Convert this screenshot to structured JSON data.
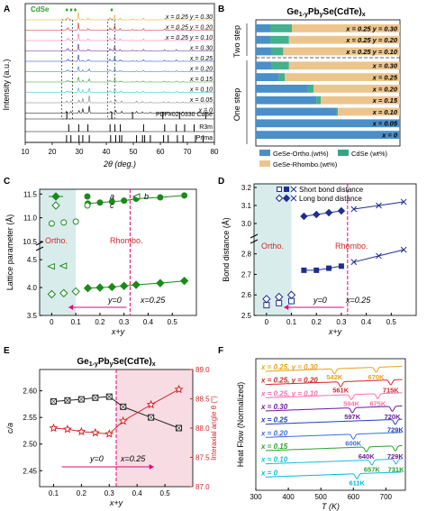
{
  "figure": {
    "panel_letters": [
      "A",
      "B",
      "C",
      "D",
      "E",
      "F"
    ],
    "formula": {
      "base": "Ge",
      "sub1": "1-y",
      "pb": "Pb",
      "sub2": "y",
      "mid": "Se(CdTe)",
      "sub3": "x"
    },
    "phase_labels": {
      "ortho": "Ortho.",
      "rhombo": "Rhombo."
    },
    "composition_labels": {
      "y0": "y=0",
      "x025": "x=0.25"
    }
  },
  "chart_data": [
    {
      "panel": "A",
      "type": "line",
      "xlabel": "2θ (deg.)",
      "ylabel": "Intensity (a.u.)",
      "xlim": [
        10,
        80
      ],
      "xticks": [
        10,
        20,
        30,
        40,
        50,
        60,
        70,
        80
      ],
      "cdse_marker_label": "CdSe",
      "series": [
        {
          "name": "x = 0.25 y = 0.30",
          "color": "#e8a317"
        },
        {
          "name": "x = 0.25 y = 0.20",
          "color": "#d62728"
        },
        {
          "name": "x = 0.25 y = 0.10",
          "color": "#ff6fb0"
        },
        {
          "name": "x = 0.30",
          "color": "#6a1b9a"
        },
        {
          "name": "x = 0.25",
          "color": "#1f3fbf"
        },
        {
          "name": "x = 0.20",
          "color": "#3b6fd8"
        },
        {
          "name": "x = 0.15",
          "color": "#2ca02c"
        },
        {
          "name": "x = 0.10",
          "color": "#17becf"
        },
        {
          "name": "x = 0.05",
          "color": "#7f7f7f"
        },
        {
          "name": "x = 0",
          "color": "#000000"
        }
      ],
      "reference_patterns": [
        {
          "name": "PDF#02-0330 CdSe",
          "peaks": [
            25.4,
            42.0,
            49.7,
            60.9,
            67.1,
            76.8
          ]
        },
        {
          "name": "R3m",
          "peaks": [
            26.1,
            29.8,
            33.2,
            41.4,
            43.2,
            45.2,
            53.8,
            61.6,
            65.9,
            69.0,
            72.5
          ]
        },
        {
          "name": "Pnma",
          "peaks": [
            25.3,
            26.9,
            29.9,
            31.3,
            33.7,
            41.6,
            43.5,
            44.9,
            45.7,
            51.2,
            53.4,
            54.2,
            56.3,
            61.2,
            62.9,
            66.3,
            68.4,
            73.0,
            75.8
          ]
        }
      ]
    },
    {
      "panel": "B",
      "type": "bar",
      "orientation": "horizontal",
      "stacked": true,
      "xlim": [
        0,
        100
      ],
      "group_labels": [
        "Two step",
        "One step"
      ],
      "categories": [
        "x = 0.25 y = 0.30",
        "x = 0.25 y = 0.20",
        "x = 0.25 y = 0.10",
        "x = 0.30",
        "x = 0.25",
        "x = 0.20",
        "x = 0.15",
        "x = 0.10",
        "x = 0.05",
        "x = 0"
      ],
      "series": [
        {
          "name": "GeSe-Ortho.(wt%)",
          "color": "#4a8fc8",
          "values": [
            10,
            10,
            11,
            11,
            16,
            36,
            42,
            56,
            100,
            100
          ]
        },
        {
          "name": "CdSe (wt%)",
          "color": "#2fa882",
          "values": [
            15,
            13,
            8,
            12,
            4,
            4,
            3,
            1,
            0,
            0
          ]
        },
        {
          "name": "GeSe-Rhombo.(wt%)",
          "color": "#ecc58c",
          "values": [
            75,
            77,
            81,
            77,
            80,
            60,
            55,
            43,
            0,
            0
          ]
        }
      ]
    },
    {
      "panel": "C",
      "type": "scatter",
      "xlabel": "x+y",
      "ylabel": "Lattice parameter (Å)",
      "xlim": [
        -0.05,
        0.6
      ],
      "xticks": [
        0,
        0.1,
        0.2,
        0.3,
        0.4,
        0.5
      ],
      "yticks": [
        3.5,
        4.0,
        4.5,
        10.5,
        11.0,
        11.5
      ],
      "broken_y": true,
      "series": [
        {
          "name": "a",
          "x": [
            0,
            0.05,
            0.1
          ],
          "y": [
            3.88,
            3.9,
            3.93
          ],
          "filled": false
        },
        {
          "name": "a",
          "x": [
            0.15,
            0.2,
            0.25,
            0.3,
            0.35,
            0.45,
            0.55
          ],
          "y": [
            3.99,
            4.0,
            4.01,
            4.03,
            4.05,
            4.08,
            4.12
          ],
          "filled": true
        },
        {
          "name": "b",
          "x": [
            0,
            0.05
          ],
          "y": [
            4.38,
            4.39
          ],
          "filled": false
        },
        {
          "name": "c",
          "x": [
            0,
            0.05,
            0.1
          ],
          "y": [
            10.88,
            10.9,
            10.92
          ],
          "filled": false
        },
        {
          "name": "c",
          "x": [
            0.15,
            0.2,
            0.25,
            0.3,
            0.35,
            0.45,
            0.55
          ],
          "y": [
            11.3,
            11.32,
            11.34,
            11.36,
            11.4,
            11.43,
            11.47
          ],
          "filled": true
        }
      ]
    },
    {
      "panel": "D",
      "type": "scatter",
      "xlabel": "x+y",
      "ylabel": "Bond distance (Å)",
      "xlim": [
        -0.05,
        0.6
      ],
      "xticks": [
        0,
        0.1,
        0.2,
        0.3,
        0.4,
        0.5
      ],
      "yticks": [
        2.5,
        2.6,
        2.7,
        2.8,
        3.0,
        3.1,
        3.2
      ],
      "broken_y": true,
      "legend": [
        "Short bond distance",
        "Long bond distance"
      ],
      "series": [
        {
          "name": "Short bond distance",
          "x": [
            0,
            0.05,
            0.1,
            0.15,
            0.2,
            0.25,
            0.3,
            0.35,
            0.45,
            0.55
          ],
          "y": [
            2.55,
            2.56,
            2.57,
            2.72,
            2.72,
            2.73,
            2.74,
            2.76,
            2.79,
            2.82
          ]
        },
        {
          "name": "Long bond distance",
          "x": [
            0,
            0.05,
            0.1,
            0.15,
            0.2,
            0.25,
            0.3,
            0.35,
            0.45,
            0.55
          ],
          "y": [
            2.58,
            2.59,
            2.6,
            3.04,
            3.05,
            3.06,
            3.07,
            3.08,
            3.1,
            3.12
          ]
        }
      ]
    },
    {
      "panel": "E",
      "type": "line",
      "xlabel": "x+y",
      "ylabel": "c/a",
      "ylabel_right": "Interaxial angle θ (°)",
      "xlim": [
        0.05,
        0.6
      ],
      "xticks": [
        0.1,
        0.2,
        0.3,
        0.4,
        0.5
      ],
      "ylim": [
        2.42,
        2.64
      ],
      "yticks": [
        2.45,
        2.5,
        2.55,
        2.6
      ],
      "ylim_right": [
        87.0,
        89.0
      ],
      "yticks_right": [
        87.0,
        87.5,
        88.0,
        88.5,
        89.0
      ],
      "series": [
        {
          "name": "c/a",
          "axis": "left",
          "x": [
            0.1,
            0.15,
            0.2,
            0.25,
            0.3,
            0.35,
            0.45,
            0.55
          ],
          "y": [
            2.58,
            2.582,
            2.584,
            2.587,
            2.589,
            2.57,
            2.55,
            2.53
          ]
        },
        {
          "name": "θ",
          "axis": "right",
          "x": [
            0.1,
            0.15,
            0.2,
            0.25,
            0.3,
            0.35,
            0.45,
            0.55
          ],
          "y": [
            88.0,
            87.98,
            87.94,
            87.92,
            87.9,
            88.12,
            88.4,
            88.66
          ]
        }
      ]
    },
    {
      "panel": "F",
      "type": "line",
      "xlabel": "T (K)",
      "ylabel": "Heat Flow (Normalized)",
      "xlim": [
        300,
        760
      ],
      "xticks": [
        300,
        400,
        500,
        600,
        700
      ],
      "series": [
        {
          "name": "x = 0.25, y = 0.30",
          "color": "#e8a317",
          "peaks_K": [
            542,
            670
          ]
        },
        {
          "name": "x = 0.25, y = 0.20",
          "color": "#d62728",
          "peaks_K": [
            561,
            715
          ]
        },
        {
          "name": "x = 0.25, y = 0.10",
          "color": "#ff6fb0",
          "peaks_K": [
            594,
            675
          ]
        },
        {
          "name": "x = 0.30",
          "color": "#6a1b9a",
          "peaks_K": [
            597,
            720
          ]
        },
        {
          "name": "x = 0.25",
          "color": "#1f3fbf",
          "peaks_K": [
            729
          ]
        },
        {
          "name": "x = 0.20",
          "color": "#3b6fd8",
          "peaks_K": [
            600
          ]
        },
        {
          "name": "x = 0.15",
          "color": "#2ca02c",
          "peaks_K": [
            640,
            729
          ]
        },
        {
          "name": "x = 0.10",
          "color": "#17becf",
          "peaks_K": [
            657,
            731
          ]
        },
        {
          "name": "x = 0",
          "color": "#00bcd4",
          "peaks_K": [
            611
          ]
        }
      ],
      "labels": [
        {
          "text": "542K",
          "color": "#e8a317"
        },
        {
          "text": "670K",
          "color": "#e8a317"
        },
        {
          "text": "561K",
          "color": "#d62728"
        },
        {
          "text": "715K",
          "color": "#d62728"
        },
        {
          "text": "594K",
          "color": "#ff6fb0"
        },
        {
          "text": "675K",
          "color": "#ff6fb0"
        },
        {
          "text": "597K",
          "color": "#6a1b9a"
        },
        {
          "text": "720K",
          "color": "#6a1b9a"
        },
        {
          "text": "729K",
          "color": "#1f3fbf"
        },
        {
          "text": "600K",
          "color": "#3b6fd8"
        },
        {
          "text": "640K",
          "color": "#6a1b9a"
        },
        {
          "text": "729K",
          "color": "#6a1b9a"
        },
        {
          "text": "657K",
          "color": "#2ca02c"
        },
        {
          "text": "731K",
          "color": "#2ca02c"
        },
        {
          "text": "611K",
          "color": "#00bcd4"
        }
      ]
    }
  ]
}
